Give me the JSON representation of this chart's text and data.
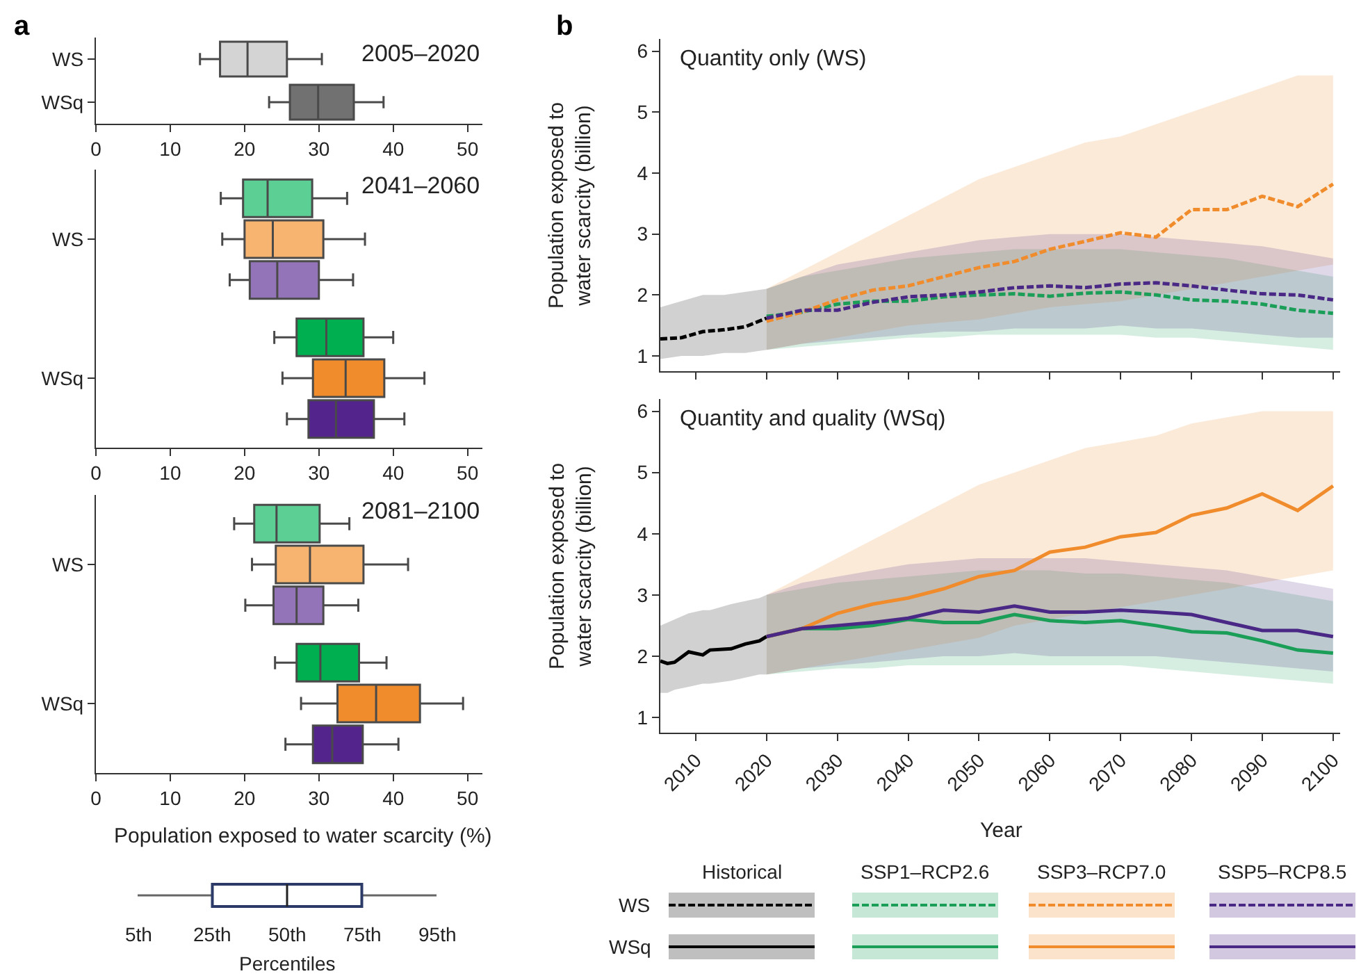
{
  "chart_data": [
    {
      "type": "box",
      "title": "2005–2020",
      "annotations": [
        "a"
      ],
      "orientation": "horizontal",
      "categories": [
        "WS",
        "WSq"
      ],
      "xlim": [
        0,
        52
      ],
      "xticks": [
        0,
        10,
        20,
        30,
        40,
        50
      ],
      "series": [
        {
          "colors": [
            "#d4d4d4",
            "#717171"
          ],
          "boxes": [
            {
              "low": 14,
              "q1": 16.7,
              "median": 20.4,
              "q3": 25.7,
              "high": 30.4
            },
            {
              "low": 23.3,
              "q1": 26.1,
              "median": 29.9,
              "q3": 34.7,
              "high": 38.7
            }
          ]
        }
      ]
    },
    {
      "type": "box",
      "title": "2041–2060",
      "orientation": "horizontal",
      "categories": [
        "WS",
        "WSq"
      ],
      "xlim": [
        0,
        52
      ],
      "xticks": [
        0,
        10,
        20,
        30,
        40,
        50
      ],
      "series": [
        {
          "colors": [
            "#5ccf94",
            "#00b050"
          ],
          "boxes": [
            {
              "low": 16.8,
              "q1": 19.8,
              "median": 23.1,
              "q3": 29.1,
              "high": 33.8
            },
            {
              "low": 24.0,
              "q1": 27.0,
              "median": 31.0,
              "q3": 36.0,
              "high": 40.0
            }
          ]
        },
        {
          "colors": [
            "#f7b470",
            "#f08c2c"
          ],
          "boxes": [
            {
              "low": 17.0,
              "q1": 20.0,
              "median": 23.8,
              "q3": 30.6,
              "high": 36.2
            },
            {
              "low": 25.1,
              "q1": 29.2,
              "median": 33.6,
              "q3": 38.8,
              "high": 44.2
            }
          ]
        },
        {
          "colors": [
            "#9474b8",
            "#53258c"
          ],
          "boxes": [
            {
              "low": 18.0,
              "q1": 20.7,
              "median": 24.4,
              "q3": 30.0,
              "high": 34.6
            },
            {
              "low": 25.7,
              "q1": 28.6,
              "median": 32.3,
              "q3": 37.4,
              "high": 41.5
            }
          ]
        }
      ]
    },
    {
      "type": "box",
      "title": "2081–2100",
      "xlabel": "Population exposed to water scarcity (%)",
      "orientation": "horizontal",
      "categories": [
        "WS",
        "WSq"
      ],
      "xlim": [
        0,
        52
      ],
      "xticks": [
        0,
        10,
        20,
        30,
        40,
        50
      ],
      "series": [
        {
          "colors": [
            "#5ccf94",
            "#00b050"
          ],
          "boxes": [
            {
              "low": 18.6,
              "q1": 21.3,
              "median": 24.3,
              "q3": 30.1,
              "high": 34.1
            },
            {
              "low": 24.1,
              "q1": 27.0,
              "median": 30.2,
              "q3": 35.4,
              "high": 39.1
            }
          ]
        },
        {
          "colors": [
            "#f7b470",
            "#f08c2c"
          ],
          "boxes": [
            {
              "low": 21.0,
              "q1": 24.2,
              "median": 28.8,
              "q3": 36.0,
              "high": 42.0
            },
            {
              "low": 27.6,
              "q1": 32.5,
              "median": 37.7,
              "q3": 43.6,
              "high": 49.4
            }
          ]
        },
        {
          "colors": [
            "#9474b8",
            "#53258c"
          ],
          "boxes": [
            {
              "low": 20.1,
              "q1": 23.9,
              "median": 27.0,
              "q3": 30.6,
              "high": 35.3
            },
            {
              "low": 25.5,
              "q1": 29.2,
              "median": 31.8,
              "q3": 35.9,
              "high": 40.7
            }
          ]
        }
      ]
    },
    {
      "type": "other",
      "xlabel": "Percentiles",
      "annotations": [
        "5th",
        "25th",
        "50th",
        "75th",
        "95th"
      ]
    },
    {
      "type": "line",
      "title": "Quantity only (WS)",
      "ylabel": "Population exposed to water scarcity (billion)",
      "annotations": [
        "b"
      ],
      "line_style": "dashed",
      "tick_labels": "y",
      "xlim": [
        2005,
        2101
      ],
      "xticks": [
        2010,
        2020,
        2030,
        2040,
        2050,
        2060,
        2070,
        2080,
        2090,
        2100
      ],
      "ylim": [
        0.75,
        6.2
      ],
      "yticks": [
        1,
        2,
        3,
        4,
        5,
        6
      ],
      "x": [
        2020,
        2025,
        2030,
        2035,
        2040,
        2045,
        2050,
        2055,
        2060,
        2065,
        2070,
        2075,
        2080,
        2085,
        2090,
        2095,
        2100
      ],
      "series": [
        {
          "color": "#000000",
          "x": [
            2005,
            2008,
            2011,
            2014,
            2017,
            2020
          ],
          "values": [
            1.28,
            1.3,
            1.4,
            1.43,
            1.48,
            1.62
          ],
          "lower": [
            0.95,
            1.0,
            1.0,
            1.05,
            1.05,
            1.1
          ],
          "upper": [
            1.8,
            1.9,
            2.0,
            2.0,
            2.05,
            2.1
          ]
        },
        {
          "color": "#1a9e58",
          "values": [
            1.65,
            1.72,
            1.85,
            1.9,
            1.9,
            1.97,
            2.0,
            2.02,
            1.98,
            2.03,
            2.05,
            2.0,
            1.92,
            1.9,
            1.85,
            1.75,
            1.7
          ],
          "lower": [
            1.1,
            1.15,
            1.2,
            1.25,
            1.3,
            1.3,
            1.35,
            1.35,
            1.35,
            1.35,
            1.35,
            1.3,
            1.3,
            1.25,
            1.2,
            1.15,
            1.1
          ],
          "upper": [
            2.1,
            2.3,
            2.4,
            2.5,
            2.6,
            2.65,
            2.7,
            2.75,
            2.75,
            2.75,
            2.75,
            2.7,
            2.65,
            2.6,
            2.5,
            2.4,
            2.3
          ]
        },
        {
          "color": "#f08c2c",
          "values": [
            1.57,
            1.72,
            1.92,
            2.08,
            2.15,
            2.3,
            2.45,
            2.55,
            2.75,
            2.88,
            3.02,
            2.95,
            3.4,
            3.4,
            3.62,
            3.45,
            3.82
          ],
          "lower": [
            1.1,
            1.2,
            1.3,
            1.4,
            1.5,
            1.55,
            1.6,
            1.7,
            1.8,
            1.85,
            1.9,
            2.0,
            2.1,
            2.2,
            2.3,
            2.4,
            2.5
          ],
          "upper": [
            2.1,
            2.4,
            2.7,
            3.0,
            3.3,
            3.6,
            3.9,
            4.1,
            4.3,
            4.5,
            4.6,
            4.8,
            5.0,
            5.2,
            5.4,
            5.6,
            5.6
          ]
        },
        {
          "color": "#4a2885",
          "values": [
            1.62,
            1.75,
            1.75,
            1.88,
            1.97,
            2.0,
            2.05,
            2.12,
            2.15,
            2.12,
            2.18,
            2.2,
            2.15,
            2.08,
            2.02,
            2.0,
            1.92
          ],
          "lower": [
            1.1,
            1.2,
            1.25,
            1.3,
            1.35,
            1.4,
            1.4,
            1.45,
            1.45,
            1.45,
            1.5,
            1.45,
            1.45,
            1.4,
            1.35,
            1.3,
            1.3
          ],
          "upper": [
            2.1,
            2.3,
            2.5,
            2.6,
            2.7,
            2.8,
            2.9,
            2.95,
            3.0,
            3.0,
            3.0,
            2.95,
            2.9,
            2.85,
            2.8,
            2.7,
            2.6
          ]
        }
      ]
    },
    {
      "type": "line",
      "title": "Quantity and quality (WSq)",
      "ylabel": "Population exposed to water scarcity (billion)",
      "xlabel": "Year",
      "line_style": "solid",
      "xlim": [
        2005,
        2101
      ],
      "xticks": [
        2010,
        2020,
        2030,
        2040,
        2050,
        2060,
        2070,
        2080,
        2090,
        2100
      ],
      "ylim": [
        0.75,
        6.2
      ],
      "yticks": [
        1,
        2,
        3,
        4,
        5,
        6
      ],
      "x": [
        2020,
        2025,
        2030,
        2035,
        2040,
        2045,
        2050,
        2055,
        2060,
        2065,
        2070,
        2075,
        2080,
        2085,
        2090,
        2095,
        2100
      ],
      "series": [
        {
          "color": "#000000",
          "x": [
            2005,
            2006,
            2007,
            2009,
            2011,
            2012,
            2015,
            2017,
            2019,
            2020
          ],
          "values": [
            1.92,
            1.88,
            1.9,
            2.07,
            2.02,
            2.1,
            2.12,
            2.2,
            2.25,
            2.32
          ],
          "lower": [
            1.4,
            1.4,
            1.45,
            1.5,
            1.55,
            1.55,
            1.6,
            1.65,
            1.7,
            1.7
          ],
          "upper": [
            2.5,
            2.55,
            2.6,
            2.7,
            2.75,
            2.75,
            2.85,
            2.9,
            2.95,
            3.0
          ]
        },
        {
          "color": "#1a9e58",
          "values": [
            2.32,
            2.45,
            2.45,
            2.5,
            2.6,
            2.55,
            2.55,
            2.68,
            2.58,
            2.55,
            2.58,
            2.5,
            2.4,
            2.38,
            2.25,
            2.1,
            2.05
          ],
          "lower": [
            1.7,
            1.75,
            1.8,
            1.8,
            1.85,
            1.85,
            1.85,
            1.85,
            1.85,
            1.85,
            1.85,
            1.8,
            1.75,
            1.7,
            1.65,
            1.6,
            1.55
          ],
          "upper": [
            3.0,
            3.1,
            3.2,
            3.25,
            3.3,
            3.35,
            3.4,
            3.4,
            3.4,
            3.35,
            3.35,
            3.3,
            3.25,
            3.2,
            3.1,
            3.0,
            2.9
          ]
        },
        {
          "color": "#f08c2c",
          "values": [
            2.32,
            2.45,
            2.7,
            2.85,
            2.95,
            3.1,
            3.3,
            3.4,
            3.7,
            3.78,
            3.95,
            4.02,
            4.3,
            4.42,
            4.65,
            4.38,
            4.78
          ],
          "lower": [
            1.7,
            1.8,
            1.9,
            2.0,
            2.1,
            2.2,
            2.3,
            2.5,
            2.6,
            2.7,
            2.8,
            2.9,
            3.0,
            3.1,
            3.2,
            3.3,
            3.4
          ],
          "upper": [
            3.0,
            3.3,
            3.6,
            3.9,
            4.2,
            4.5,
            4.8,
            5.0,
            5.2,
            5.4,
            5.5,
            5.6,
            5.8,
            5.9,
            6.0,
            6.0,
            6.0
          ]
        },
        {
          "color": "#4a2885",
          "values": [
            2.32,
            2.45,
            2.5,
            2.55,
            2.62,
            2.75,
            2.72,
            2.82,
            2.72,
            2.72,
            2.75,
            2.72,
            2.68,
            2.55,
            2.42,
            2.42,
            2.32
          ],
          "lower": [
            1.7,
            1.8,
            1.85,
            1.9,
            1.95,
            2.0,
            2.0,
            2.05,
            2.0,
            2.0,
            2.0,
            2.0,
            1.95,
            1.9,
            1.85,
            1.8,
            1.75
          ],
          "upper": [
            3.0,
            3.2,
            3.3,
            3.4,
            3.5,
            3.55,
            3.6,
            3.6,
            3.6,
            3.6,
            3.55,
            3.5,
            3.45,
            3.4,
            3.3,
            3.2,
            3.1
          ]
        }
      ]
    },
    {
      "type": "other",
      "categories": [
        "Historical",
        "SSP1–RCP2.6",
        "SSP3–RCP7.0",
        "SSP5–RCP8.5"
      ],
      "y_categories": [
        "WS",
        "WSq"
      ]
    }
  ]
}
